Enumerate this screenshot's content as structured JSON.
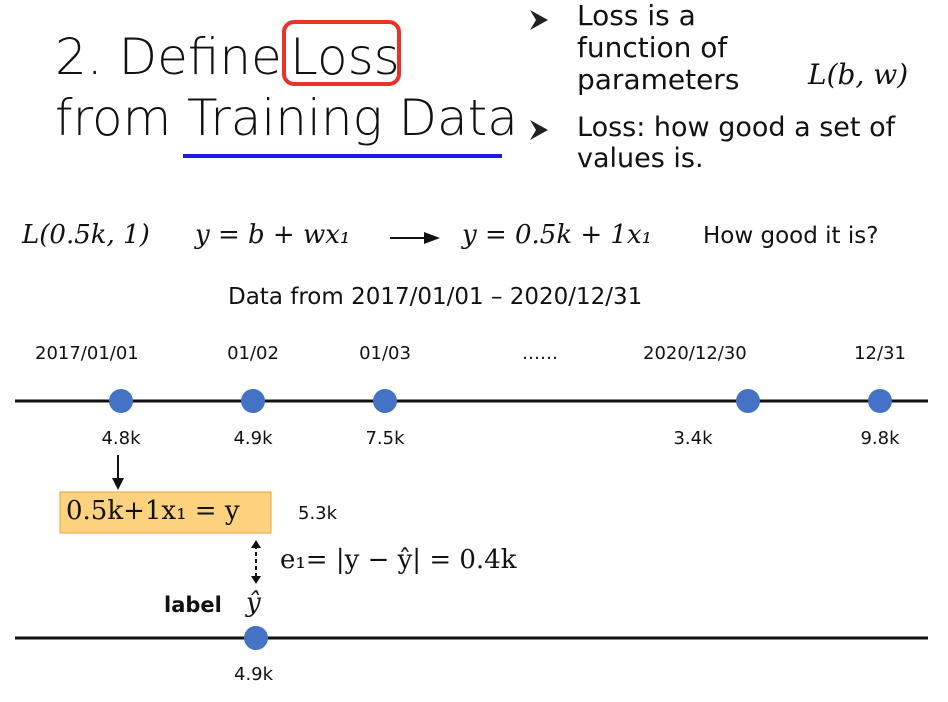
{
  "header": {
    "title_prefix": "2. Define",
    "title_highlight": "Loss",
    "title_line2_prefix": "from",
    "title_line2_underlined": "Training Data"
  },
  "bullets": [
    {
      "text": "Loss is a function of parameters",
      "formula": "L(b, w)"
    },
    {
      "text": "Loss: how good a set of values is."
    }
  ],
  "formula_row": {
    "loss": "L(0.5k, 1)",
    "model": "y = b + wx₁",
    "instance": "y = 0.5k + 1x₁",
    "question": "How good it is?"
  },
  "data_caption": "Data from 2017/01/01 – 2020/12/31",
  "timeline": {
    "dates": [
      "2017/01/01",
      "01/02",
      "01/03",
      "……",
      "2020/12/30",
      "12/31"
    ],
    "values": [
      "4.8k",
      "4.9k",
      "7.5k",
      null,
      "3.4k",
      "9.8k"
    ]
  },
  "computation": {
    "formula": "0.5k+1x₁ = y",
    "prediction": "5.3k",
    "error": "e₁= |y − ŷ| = 0.4k",
    "label_word": "label",
    "label_symbol": "ŷ",
    "label_value": "4.9k"
  }
}
